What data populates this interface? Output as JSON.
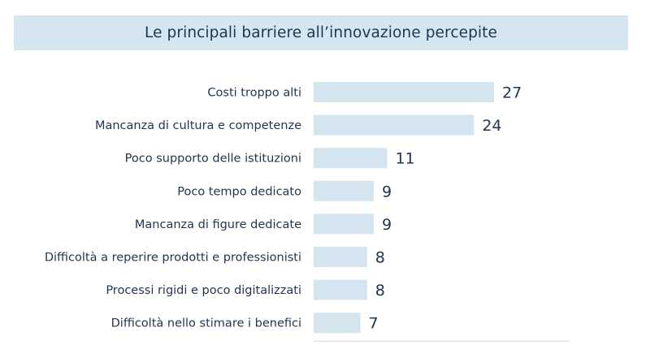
{
  "chart_data": {
    "type": "bar",
    "orientation": "horizontal",
    "title": "Le principali barriere all’innovazione percepite",
    "categories": [
      "Costi troppo alti",
      "Mancanza di cultura e competenze",
      "Poco supporto delle istituzioni",
      "Poco tempo dedicato",
      "Mancanza di figure dedicate",
      "Difficoltà a reperire prodotti e professionisti",
      "Processi rigidi e poco digitalizzati",
      "Difficoltà nello stimare i benefici"
    ],
    "values": [
      27,
      24,
      11,
      9,
      9,
      8,
      8,
      7
    ],
    "xlim": [
      0,
      27
    ],
    "grid": false,
    "legend": "none",
    "colors": {
      "bar": "#d4e5ef",
      "title_band": "#d6e6f0",
      "text": "#1f3552"
    }
  }
}
